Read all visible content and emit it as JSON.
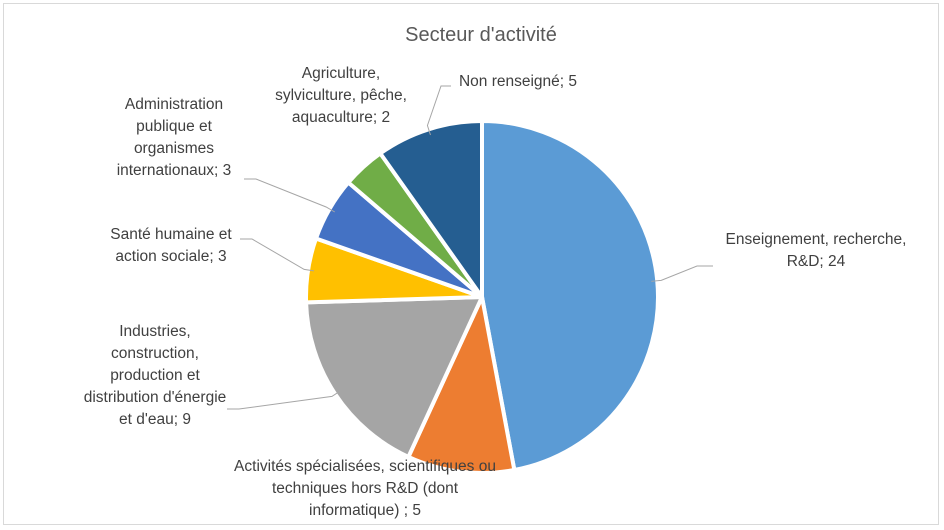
{
  "chart_data": {
    "type": "pie",
    "title": "Secteur d'activité",
    "slices": [
      {
        "label": "Enseignement, recherche, R&D; 24",
        "value": 24,
        "color": "#5B9BD5"
      },
      {
        "label": "Activités spécialisées, scientifiques ou techniques hors R&D (dont informatique) ; 5",
        "value": 5,
        "color": "#ED7D31"
      },
      {
        "label": "Industries, construction, production et distribution d'énergie et d'eau; 9",
        "value": 9,
        "color": "#A5A5A5"
      },
      {
        "label": "Santé humaine et action sociale; 3",
        "value": 3,
        "color": "#FFC000"
      },
      {
        "label": "Administration publique et organismes internationaux; 3",
        "value": 3,
        "color": "#4472C4"
      },
      {
        "label": "Agriculture, sylviculture, pêche, aquaculture; 2",
        "value": 2,
        "color": "#70AD47"
      },
      {
        "label": "Non renseigné; 5",
        "value": 5,
        "color": "#255E91"
      }
    ],
    "legend": "none",
    "start": "top",
    "direction": "clockwise"
  }
}
